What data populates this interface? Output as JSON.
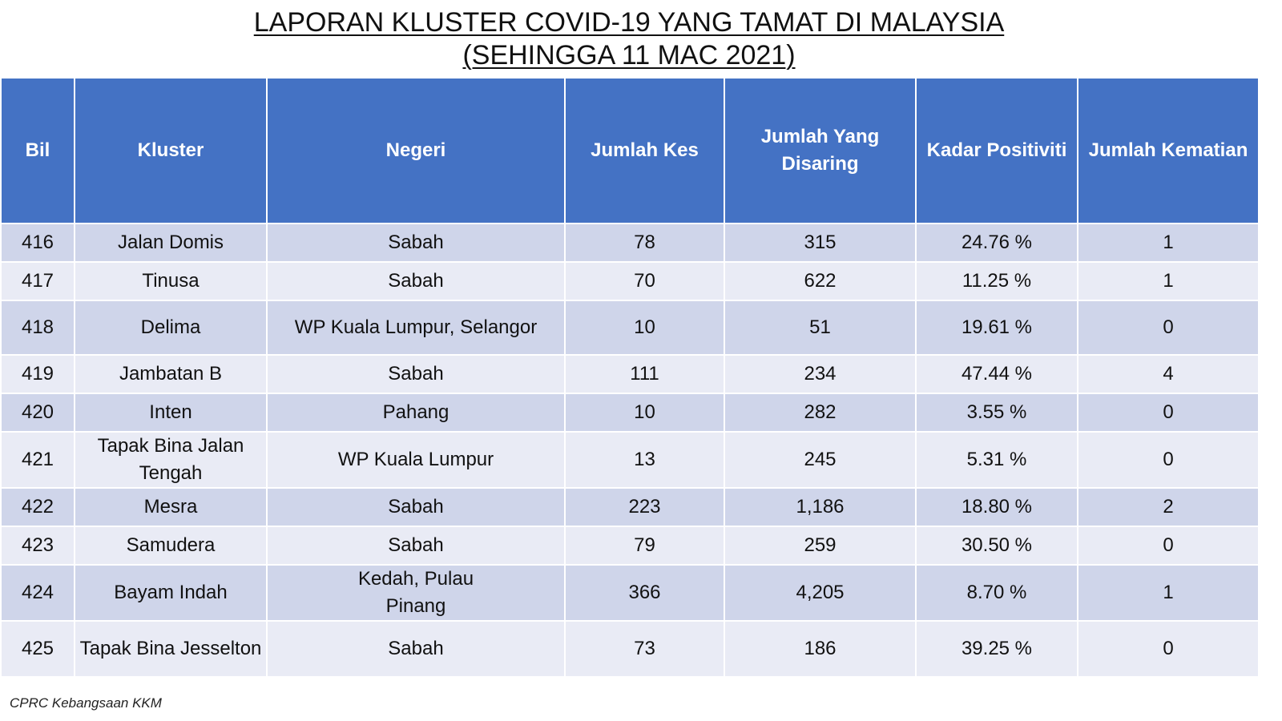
{
  "title": {
    "line1": "LAPORAN KLUSTER COVID-19 YANG TAMAT DI MALAYSIA",
    "line2": "(SEHINGGA  11 MAC 2021)"
  },
  "table": {
    "headers": {
      "bil": "Bil",
      "kluster": "Kluster",
      "negeri": "Negeri",
      "jumlah_kes": "Jumlah Kes",
      "jumlah_disaring": "Jumlah Yang Disaring",
      "kadar_positiviti": "Kadar Positiviti",
      "jumlah_kematian": "Jumlah Kematian"
    },
    "rows": [
      {
        "bil": "416",
        "kluster": "Jalan Domis",
        "negeri": "Sabah",
        "kes": "78",
        "disaring": "315",
        "positiviti": "24.76 %",
        "kematian": "1"
      },
      {
        "bil": "417",
        "kluster": "Tinusa",
        "negeri": "Sabah",
        "kes": "70",
        "disaring": "622",
        "positiviti": "11.25 %",
        "kematian": "1"
      },
      {
        "bil": "418",
        "kluster": "Delima",
        "negeri": "WP Kuala Lumpur, Selangor",
        "kes": "10",
        "disaring": "51",
        "positiviti": "19.61 %",
        "kematian": "0"
      },
      {
        "bil": "419",
        "kluster": "Jambatan B",
        "negeri": "Sabah",
        "kes": "111",
        "disaring": "234",
        "positiviti": "47.44 %",
        "kematian": "4"
      },
      {
        "bil": "420",
        "kluster": "Inten",
        "negeri": "Pahang",
        "kes": "10",
        "disaring": "282",
        "positiviti": "3.55 %",
        "kematian": "0"
      },
      {
        "bil": "421",
        "kluster": "Tapak Bina Jalan Tengah",
        "negeri": "WP Kuala Lumpur",
        "kes": "13",
        "disaring": "245",
        "positiviti": "5.31 %",
        "kematian": "0"
      },
      {
        "bil": "422",
        "kluster": "Mesra",
        "negeri": "Sabah",
        "kes": "223",
        "disaring": "1,186",
        "positiviti": "18.80 %",
        "kematian": "2"
      },
      {
        "bil": "423",
        "kluster": "Samudera",
        "negeri": "Sabah",
        "kes": "79",
        "disaring": "259",
        "positiviti": "30.50 %",
        "kematian": "0"
      },
      {
        "bil": "424",
        "kluster": "Bayam Indah",
        "negeri": "Kedah, Pulau Pinang",
        "kes": "366",
        "disaring": "4,205",
        "positiviti": "8.70 %",
        "kematian": "1"
      },
      {
        "bil": "425",
        "kluster": "Tapak Bina Jesselton",
        "negeri": "Sabah",
        "kes": "73",
        "disaring": "186",
        "positiviti": "39.25 %",
        "kematian": "0"
      }
    ]
  },
  "footer": {
    "source": "CPRC Kebangsaan KKM"
  },
  "colors": {
    "header_bg": "#4472c4",
    "row_dark": "#cfd5ea",
    "row_light": "#e9ebf5"
  }
}
